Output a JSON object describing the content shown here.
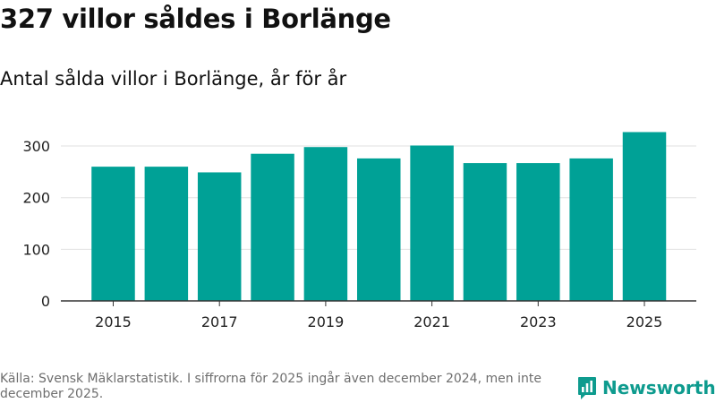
{
  "header": {
    "title": "327 villor såldes i Borlänge",
    "subtitle": "Antal sålda villor i Borlänge, år för år"
  },
  "footer": {
    "source": "Källa: Svensk Mäklarstatistik. I siffrorna för 2025 ingår även december 2024, men inte december 2025.",
    "brand": "Newsworthy"
  },
  "colors": {
    "bar": "#00a196",
    "grid": "#e0e0e0",
    "axis": "#333333",
    "tick_text": "#222222",
    "brand": "#0e9b8e"
  },
  "chart_data": {
    "type": "bar",
    "title": "327 villor såldes i Borlänge",
    "subtitle": "Antal sålda villor i Borlänge, år för år",
    "xlabel": "",
    "ylabel": "",
    "categories": [
      2015,
      2016,
      2017,
      2018,
      2019,
      2020,
      2021,
      2022,
      2023,
      2024,
      2025
    ],
    "values": [
      260,
      260,
      249,
      285,
      298,
      276,
      301,
      267,
      267,
      276,
      327
    ],
    "ylim": [
      0,
      340
    ],
    "yticks": [
      0,
      100,
      200,
      300
    ],
    "xtick_labels": [
      "2015",
      "2017",
      "2019",
      "2021",
      "2023",
      "2025"
    ],
    "grid": true,
    "legend": "none"
  }
}
